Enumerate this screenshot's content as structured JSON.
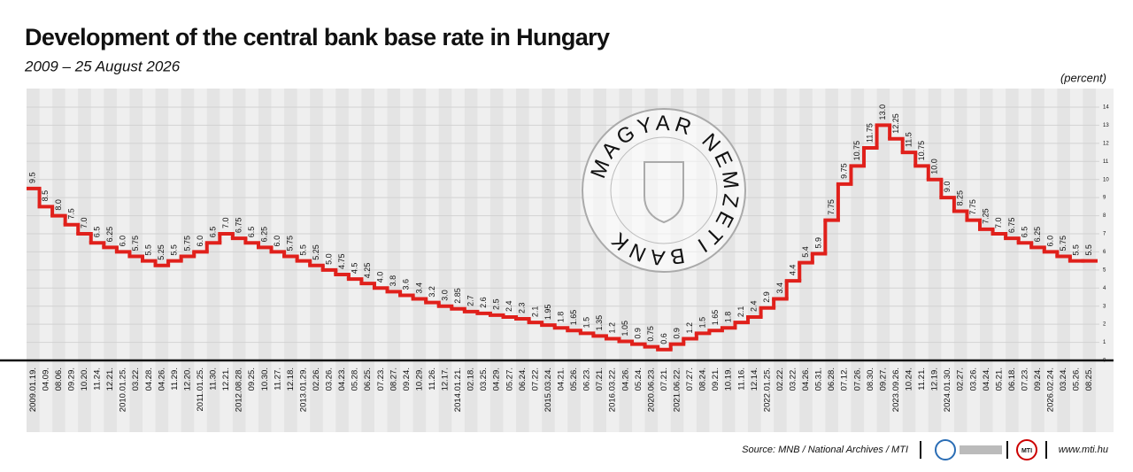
{
  "chart_data": {
    "type": "step",
    "title": "Development of the central bank base rate in Hungary",
    "subtitle": "2009 – 25 August 2026",
    "unit_label": "(percent)",
    "source": "Source: MNB / National Archives / MTI",
    "website": "www.mti.hu",
    "watermark": "MAGYAR NEMZETI BANK",
    "logo": "MTI",
    "color": "#e0201b",
    "grid": true,
    "categories": [
      "2009.01.19.",
      "04.09.",
      "08.06.",
      "09.29.",
      "10.20.",
      "11.24.",
      "12.21.",
      "2010.01.25.",
      "03.22.",
      "04.28.",
      "04.26.",
      "11.29.",
      "12.20.",
      "2011.01.25.",
      "11.30.",
      "12.21.",
      "2012.08.28.",
      "09.25.",
      "10.30.",
      "11.27.",
      "12.18.",
      "2013.01.29.",
      "02.26.",
      "03.26.",
      "04.23.",
      "05.28.",
      "06.25.",
      "07.23.",
      "08.27.",
      "09.24.",
      "10.29.",
      "11.26.",
      "12.17.",
      "2014.01.21.",
      "02.18.",
      "03.25.",
      "04.29.",
      "05.27.",
      "06.24.",
      "07.22.",
      "2015.03.24.",
      "04.21.",
      "05.26.",
      "06.23.",
      "07.21.",
      "2016.03.22.",
      "04.26.",
      "05.24.",
      "2020.06.23.",
      "07.21.",
      "2021.06.22.",
      "07.27.",
      "08.24.",
      "09.21.",
      "10.19.",
      "11.16.",
      "12.14.",
      "2022.01.25.",
      "02.22.",
      "03.22.",
      "04.26.",
      "05.31.",
      "06.28.",
      "07.12.",
      "07.26.",
      "08.30.",
      "09.27.",
      "2023.09.26.",
      "10.24.",
      "11.21.",
      "12.19.",
      "2024.01.30.",
      "02.27.",
      "03.26.",
      "04.24.",
      "05.21.",
      "06.18.",
      "07.23.",
      "09.24.",
      "2026.02.24.",
      "03.24.",
      "05.26.",
      "08.25."
    ],
    "values": [
      9.5,
      8.5,
      8.0,
      7.5,
      7.0,
      6.5,
      6.25,
      6.0,
      5.75,
      5.5,
      5.25,
      5.5,
      5.75,
      6.0,
      6.5,
      7.0,
      6.75,
      6.5,
      6.25,
      6.0,
      5.75,
      5.5,
      5.25,
      5.0,
      4.75,
      4.5,
      4.25,
      4.0,
      3.8,
      3.6,
      3.4,
      3.2,
      3.0,
      2.85,
      2.7,
      2.6,
      2.5,
      2.4,
      2.3,
      2.1,
      1.95,
      1.8,
      1.65,
      1.5,
      1.35,
      1.2,
      1.05,
      0.9,
      0.75,
      0.6,
      0.9,
      1.2,
      1.5,
      1.65,
      1.8,
      2.1,
      2.4,
      2.9,
      3.4,
      4.4,
      5.4,
      5.9,
      7.75,
      9.75,
      10.75,
      11.75,
      13.0,
      12.25,
      11.5,
      10.75,
      10.0,
      9.0,
      8.25,
      7.75,
      7.25,
      7.0,
      6.75,
      6.5,
      6.25,
      6.0,
      5.75,
      5.5,
      5.5
    ],
    "value_labels": [
      "9.5",
      "8.5",
      "8.0",
      "7.5",
      "7.0",
      "6.5",
      "6.25",
      "6.0",
      "5.75",
      "5.5",
      "5.25",
      "5.5",
      "5.75",
      "6.0",
      "6.5",
      "7.0",
      "6.75",
      "6.5",
      "6.25",
      "6.0",
      "5.75",
      "5.5",
      "5.25",
      "5.0",
      "4.75",
      "4.5",
      "4.25",
      "4.0",
      "3.8",
      "3.6",
      "3.4",
      "3.2",
      "3.0",
      "2.85",
      "2.7",
      "2.6",
      "2.5",
      "2.4",
      "2.3",
      "2.1",
      "1.95",
      "1.8",
      "1.65",
      "1.5",
      "1.35",
      "1.2",
      "1.05",
      "0.9",
      "0.75",
      "0.6",
      "0.9",
      "1.2",
      "1.5",
      "1.65",
      "1.8",
      "2.1",
      "2.4",
      "2.9",
      "3.4",
      "4.4",
      "5.4",
      "5.9",
      "7.75",
      "9.75",
      "10.75",
      "11.75",
      "13.0",
      "12.25",
      "11.5",
      "10.75",
      "10.0",
      "9.0",
      "8.25",
      "7.75",
      "7.25",
      "7.0",
      "6.75",
      "6.5",
      "6.25",
      "6.0",
      "5.75",
      "5.5",
      "5.5"
    ],
    "ylim": [
      0,
      14
    ],
    "yticks": [
      0,
      1,
      2,
      3,
      4,
      5,
      6,
      7,
      8,
      9,
      10,
      11,
      12,
      13,
      14
    ]
  }
}
